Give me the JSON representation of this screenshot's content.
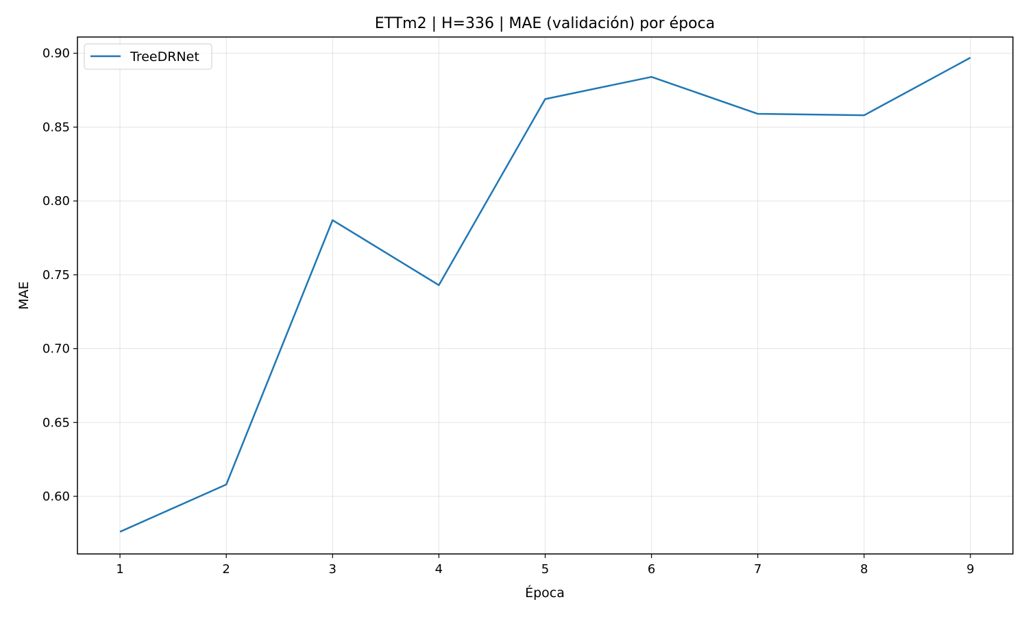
{
  "chart_data": {
    "type": "line",
    "title": "ETTm2 | H=336 | MAE (validación) por época",
    "xlabel": "Época",
    "ylabel": "MAE",
    "x": [
      1,
      2,
      3,
      4,
      5,
      6,
      7,
      8,
      9
    ],
    "xticks": [
      1,
      2,
      3,
      4,
      5,
      6,
      7,
      8,
      9
    ],
    "yticks": [
      0.6,
      0.65,
      0.7,
      0.75,
      0.8,
      0.85,
      0.9
    ],
    "xlim": [
      0.6,
      9.4
    ],
    "ylim": [
      0.561,
      0.911
    ],
    "grid": true,
    "legend_position": "upper-left",
    "series": [
      {
        "name": "TreeDRNet",
        "color": "#1f77b4",
        "values": [
          0.576,
          0.608,
          0.787,
          0.743,
          0.869,
          0.884,
          0.859,
          0.858,
          0.897
        ]
      }
    ]
  }
}
